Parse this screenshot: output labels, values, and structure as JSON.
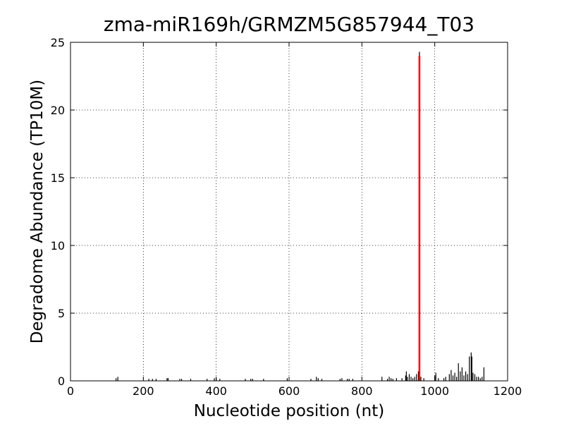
{
  "chart_data": {
    "type": "stem",
    "title": "zma-miR169h/GRMZM5G857944_T03",
    "x_label": "Nucleotide position (nt)",
    "y_label": "Degradome Abundance (TP10M)",
    "xlim": [
      0,
      1200
    ],
    "xticks": [
      0,
      200,
      400,
      600,
      800,
      1000,
      1200
    ],
    "ylim": [
      0,
      25
    ],
    "yticks": [
      0,
      5,
      10,
      15,
      20,
      25
    ],
    "grid": true,
    "series": [
      {
        "color": "#000000",
        "x": [
          125,
          130,
          215,
          225,
          235,
          265,
          268,
          300,
          305,
          330,
          375,
          395,
          400,
          410,
          480,
          495,
          500,
          530,
          595,
          660,
          675,
          680,
          690,
          740,
          745,
          760,
          765,
          775,
          855,
          870,
          875,
          880,
          885,
          895,
          910,
          920,
          922,
          925,
          930,
          935,
          940,
          945,
          950,
          955,
          958,
          962,
          970,
          1000,
          1003,
          1010,
          1025,
          1030,
          1040,
          1045,
          1050,
          1055,
          1060,
          1065,
          1070,
          1075,
          1080,
          1085,
          1090,
          1095,
          1100,
          1102,
          1105,
          1110,
          1115,
          1120,
          1125,
          1130,
          1135
        ],
        "values": [
          0.2,
          0.3,
          0.15,
          0.15,
          0.15,
          0.2,
          0.2,
          0.15,
          0.15,
          0.15,
          0.15,
          0.2,
          0.2,
          0.15,
          0.15,
          0.15,
          0.15,
          0.15,
          0.2,
          0.15,
          0.3,
          0.2,
          0.15,
          0.15,
          0.2,
          0.15,
          0.15,
          0.15,
          0.3,
          0.15,
          0.3,
          0.2,
          0.15,
          0.2,
          0.2,
          0.4,
          0.7,
          0.3,
          0.5,
          0.3,
          0.2,
          0.3,
          0.5,
          0.7,
          24.3,
          0.3,
          0.2,
          0.4,
          0.6,
          0.2,
          0.2,
          0.3,
          0.5,
          0.8,
          0.4,
          0.6,
          0.3,
          1.3,
          0.7,
          1.0,
          0.4,
          0.7,
          0.5,
          1.8,
          2.1,
          1.8,
          0.6,
          0.5,
          0.3,
          0.3,
          0.2,
          0.3,
          1.0
        ]
      },
      {
        "color": "#ff0000",
        "x": [
          958
        ],
        "values": [
          24
        ]
      }
    ]
  }
}
